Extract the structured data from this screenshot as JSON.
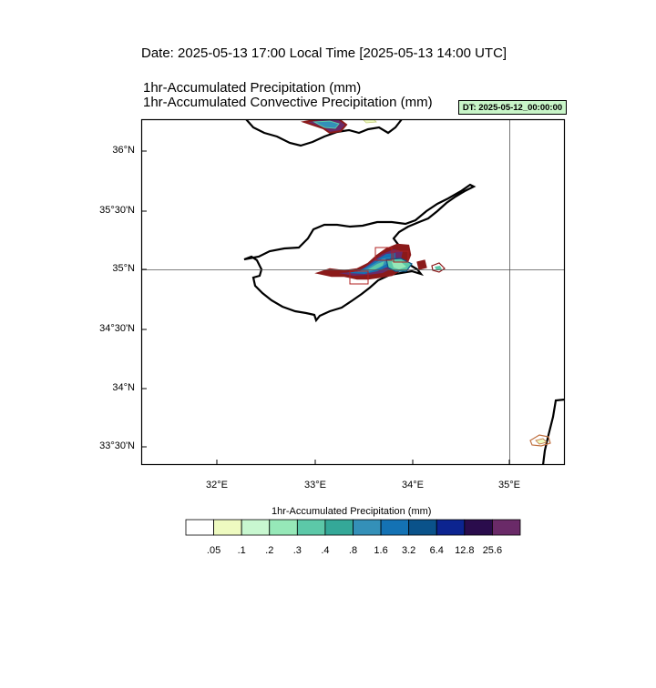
{
  "header": {
    "date_line": "Date: 2025-05-13  17:00 Local Time [2025-05-13  14:00 UTC]",
    "title_1": "1hr-Accumulated Precipitation   (mm)",
    "title_2": "1hr-Accumulated Convective Precipitation   (mm)",
    "dt_badge": "DT: 2025-05-12_00:00:00"
  },
  "map": {
    "lat_labels": [
      "36°N",
      "35°30'N",
      "35°N",
      "34°30'N",
      "34°N",
      "33°30'N"
    ],
    "lon_labels": [
      "32°E",
      "33°E",
      "34°E",
      "35°E"
    ],
    "reference_lines": {
      "lat": "35°N",
      "lon": "35°E"
    }
  },
  "colorbar": {
    "title": "1hr-Accumulated Precipitation  (mm)",
    "colors": [
      "#ffffff",
      "#eefac0",
      "#c8f7d0",
      "#96e8b8",
      "#5cc8a8",
      "#34a898",
      "#3490b8",
      "#1472b4",
      "#0a528a",
      "#0c2490",
      "#2a0c4c",
      "#6a2a68"
    ],
    "labels": [
      ".05",
      ".1",
      ".2",
      ".3",
      ".4",
      ".8",
      "1.6",
      "3.2",
      "6.4",
      "12.8",
      "25.6"
    ]
  }
}
